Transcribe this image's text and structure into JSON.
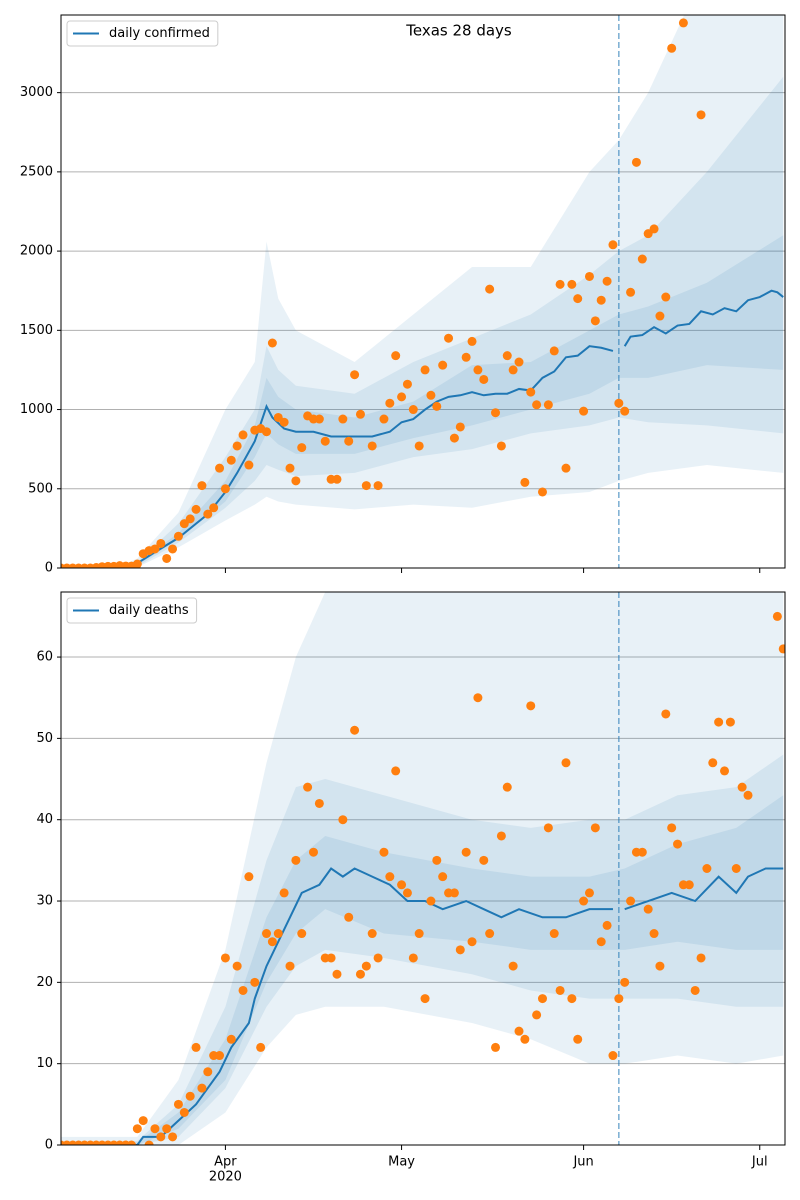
{
  "chart_data": [
    {
      "type": "line",
      "title": "Texas 28 days",
      "xlim": [
        0,
        123.3
      ],
      "ylim": [
        0,
        3490
      ],
      "yticks": [
        0,
        500,
        1000,
        1500,
        2000,
        2500,
        3000
      ],
      "grid": true,
      "legend": "upper left",
      "vline": 95,
      "series": [
        {
          "name": "daily confirmed",
          "color": "#1f77b4",
          "x": [
            0,
            10,
            13,
            16,
            20,
            23,
            25,
            28,
            30,
            33,
            35,
            36,
            38,
            40,
            43,
            46,
            50,
            53,
            56,
            58,
            60,
            62,
            64,
            66,
            68,
            70,
            72,
            74,
            76,
            78,
            80,
            82,
            84,
            86,
            88,
            90,
            92,
            94,
            95,
            96,
            97,
            99,
            101,
            103,
            105,
            107,
            109,
            111,
            113,
            115,
            117,
            119,
            121,
            122,
            123
          ],
          "values": [
            0,
            0,
            30,
            100,
            190,
            280,
            340,
            480,
            600,
            800,
            1020,
            950,
            880,
            860,
            860,
            830,
            830,
            830,
            860,
            920,
            940,
            1000,
            1050,
            1080,
            1090,
            1110,
            1090,
            1100,
            1100,
            1130,
            1120,
            1200,
            1240,
            1330,
            1340,
            1400,
            1390,
            1370,
            null,
            1400,
            1460,
            1470,
            1520,
            1480,
            1530,
            1540,
            1620,
            1600,
            1640,
            1620,
            1690,
            1710,
            1750,
            1740,
            1710
          ]
        }
      ],
      "observed": {
        "color": "#ff7f0e",
        "x": [
          0,
          1,
          2,
          3,
          4,
          5,
          6,
          7,
          8,
          9,
          10,
          11,
          12,
          13,
          14,
          15,
          16,
          17,
          18,
          19,
          20,
          21,
          22,
          23,
          24,
          25,
          26,
          27,
          28,
          29,
          30,
          31,
          32,
          33,
          34,
          35,
          36,
          37,
          38,
          39,
          40,
          41,
          42,
          43,
          44,
          45,
          46,
          47,
          48,
          49,
          50,
          51,
          52,
          53,
          54,
          55,
          56,
          57,
          58,
          59,
          60,
          61,
          62,
          63,
          64,
          65,
          66,
          67,
          68,
          69,
          70,
          71,
          72,
          73,
          74,
          75,
          76,
          77,
          78,
          79,
          80,
          81,
          82,
          83,
          84,
          85,
          86,
          87,
          88,
          89,
          90,
          91,
          92,
          93,
          94,
          95,
          96,
          97,
          98,
          99,
          100,
          101,
          102,
          103,
          104,
          106,
          109
        ],
        "values": [
          0,
          0,
          0,
          0,
          0,
          0,
          3,
          8,
          10,
          10,
          15,
          12,
          12,
          25,
          90,
          110,
          120,
          155,
          60,
          120,
          200,
          280,
          310,
          370,
          520,
          340,
          380,
          630,
          500,
          680,
          770,
          840,
          650,
          870,
          880,
          860,
          1420,
          950,
          920,
          630,
          550,
          760,
          960,
          940,
          940,
          800,
          560,
          560,
          940,
          800,
          1220,
          970,
          520,
          770,
          520,
          940,
          1040,
          1340,
          1080,
          1160,
          1000,
          770,
          1250,
          1090,
          1020,
          1280,
          1450,
          820,
          890,
          1330,
          1430,
          1250,
          1190,
          1760,
          980,
          770,
          1340,
          1250,
          1300,
          540,
          1110,
          1030,
          480,
          1030,
          1370,
          1790,
          630,
          1790,
          1700,
          990,
          1840,
          1560,
          1690,
          1810,
          2040,
          1040,
          990,
          1740,
          2560,
          1950,
          2110,
          2140,
          1590,
          1710,
          3280,
          3440,
          2860
        ]
      },
      "bands": {
        "color": "#1f77b4",
        "x": [
          0,
          10,
          13,
          20,
          28,
          33,
          35,
          37,
          40,
          50,
          60,
          70,
          80,
          90,
          95,
          100,
          110,
          123
        ],
        "ranges": [
          {
            "lower": [
              0,
              0,
              5,
              130,
              300,
              400,
              450,
              420,
              400,
              370,
              400,
              380,
              450,
              480,
              550,
              600,
              650,
              600
            ],
            "upper": [
              0,
              10,
              60,
              350,
              1000,
              1300,
              2060,
              1700,
              1500,
              1300,
              1600,
              1900,
              1900,
              2500,
              2700,
              3000,
              3800,
              4000
            ]
          },
          {
            "lower": [
              0,
              0,
              10,
              160,
              380,
              550,
              650,
              620,
              580,
              600,
              700,
              750,
              850,
              900,
              950,
              920,
              900,
              850
            ],
            "upper": [
              0,
              5,
              40,
              280,
              700,
              1000,
              1400,
              1250,
              1150,
              1100,
              1300,
              1450,
              1600,
              1850,
              2000,
              2100,
              2500,
              3100
            ]
          },
          {
            "lower": [
              0,
              0,
              20,
              180,
              420,
              700,
              850,
              780,
              720,
              720,
              820,
              900,
              1000,
              1100,
              1200,
              1200,
              1280,
              1250
            ],
            "upper": [
              0,
              3,
              35,
              220,
              550,
              900,
              1200,
              1080,
              1000,
              950,
              1050,
              1280,
              1300,
              1500,
              1600,
              1650,
              1800,
              2100
            ]
          }
        ]
      }
    },
    {
      "type": "line",
      "xlim": [
        0,
        123.3
      ],
      "ylim": [
        0,
        68
      ],
      "yticks": [
        0,
        10,
        20,
        30,
        40,
        50,
        60
      ],
      "grid": true,
      "xticks": [
        {
          "value": 28,
          "label": "Apr",
          "year": "2020"
        },
        {
          "value": 58,
          "label": "May"
        },
        {
          "value": 89,
          "label": "Jun"
        },
        {
          "value": 119,
          "label": "Jul"
        }
      ],
      "legend": "upper left",
      "vline": 95,
      "series": [
        {
          "name": "daily deaths",
          "color": "#1f77b4",
          "x": [
            0,
            13,
            14,
            17,
            20,
            23,
            25,
            27,
            29,
            32,
            33,
            35,
            37,
            39,
            41,
            44,
            46,
            48,
            50,
            53,
            56,
            59,
            62,
            65,
            69,
            72,
            75,
            78,
            82,
            86,
            90,
            94,
            95,
            96,
            100,
            104,
            108,
            112,
            115,
            117,
            120,
            123
          ],
          "values": [
            0,
            0,
            1,
            1,
            3,
            5,
            7,
            9,
            12,
            15,
            18,
            22,
            25,
            28,
            31,
            32,
            34,
            33,
            34,
            33,
            32,
            30,
            30,
            29,
            30,
            29,
            28,
            29,
            28,
            28,
            29,
            29,
            null,
            29,
            30,
            31,
            30,
            33,
            31,
            33,
            34,
            34
          ]
        }
      ],
      "observed": {
        "color": "#ff7f0e",
        "x": [
          0,
          1,
          2,
          3,
          4,
          5,
          6,
          7,
          8,
          9,
          10,
          11,
          12,
          13,
          14,
          15,
          16,
          17,
          18,
          19,
          20,
          21,
          22,
          23,
          24,
          25,
          26,
          27,
          28,
          29,
          30,
          31,
          32,
          33,
          34,
          35,
          36,
          37,
          38,
          39,
          40,
          41,
          42,
          43,
          44,
          45,
          46,
          47,
          48,
          49,
          50,
          51,
          52,
          53,
          54,
          55,
          56,
          57,
          58,
          59,
          60,
          61,
          62,
          63,
          64,
          65,
          66,
          67,
          68,
          69,
          70,
          71,
          72,
          73,
          74,
          75,
          76,
          77,
          78,
          79,
          80,
          81,
          82,
          83,
          84,
          85,
          86,
          87,
          88,
          89,
          90,
          91,
          92,
          93,
          94,
          95,
          96,
          97,
          98,
          99,
          100,
          101,
          102,
          103,
          104,
          105,
          106,
          107,
          108,
          109,
          110,
          111,
          112,
          113,
          114,
          115,
          116,
          117,
          122,
          123
        ],
        "values": [
          0,
          0,
          0,
          0,
          0,
          0,
          0,
          0,
          0,
          0,
          0,
          0,
          0,
          2,
          3,
          0,
          2,
          1,
          2,
          1,
          5,
          4,
          6,
          12,
          7,
          9,
          11,
          11,
          23,
          13,
          22,
          19,
          33,
          20,
          12,
          26,
          25,
          26,
          31,
          22,
          35,
          26,
          44,
          36,
          42,
          23,
          23,
          21,
          40,
          28,
          51,
          21,
          22,
          26,
          23,
          36,
          33,
          46,
          32,
          31,
          23,
          26,
          18,
          30,
          35,
          33,
          31,
          31,
          24,
          36,
          25,
          55,
          35,
          26,
          12,
          38,
          44,
          22,
          14,
          13,
          54,
          16,
          18,
          39,
          26,
          19,
          47,
          18,
          13,
          30,
          31,
          39,
          25,
          27,
          11,
          18,
          20,
          30,
          36,
          36,
          29,
          26,
          22,
          53,
          39,
          37,
          32,
          32,
          19,
          23,
          34,
          47,
          52,
          46,
          52,
          34,
          44,
          43,
          65,
          61
        ]
      },
      "bands": {
        "color": "#1f77b4",
        "x": [
          0,
          13,
          20,
          28,
          35,
          40,
          45,
          55,
          70,
          80,
          90,
          96,
          105,
          115,
          123
        ],
        "ranges": [
          {
            "lower": [
              0,
              0,
              0,
              4,
              12,
              16,
              17,
              17,
              15,
              13,
              10,
              10,
              11,
              10,
              11
            ],
            "upper": [
              1,
              1,
              8,
              24,
              47,
              60,
              68,
              70,
              72,
              68,
              68,
              68,
              75,
              78,
              80
            ]
          },
          {
            "lower": [
              0,
              0,
              1,
              7,
              17,
              22,
              24,
              23,
              21,
              19,
              18,
              18,
              18,
              17,
              17
            ],
            "upper": [
              0,
              0.5,
              5,
              17,
              35,
              44,
              45,
              43,
              40,
              39,
              40,
              40,
              43,
              44,
              48
            ]
          },
          {
            "lower": [
              0,
              0,
              2,
              8,
              20,
              26,
              29,
              26,
              25,
              24,
              24,
              24,
              25,
              24,
              24
            ],
            "upper": [
              0,
              0.3,
              4,
              13,
              28,
              35,
              38,
              36,
              34,
              33,
              33,
              34,
              37,
              39,
              43
            ]
          }
        ]
      }
    }
  ]
}
